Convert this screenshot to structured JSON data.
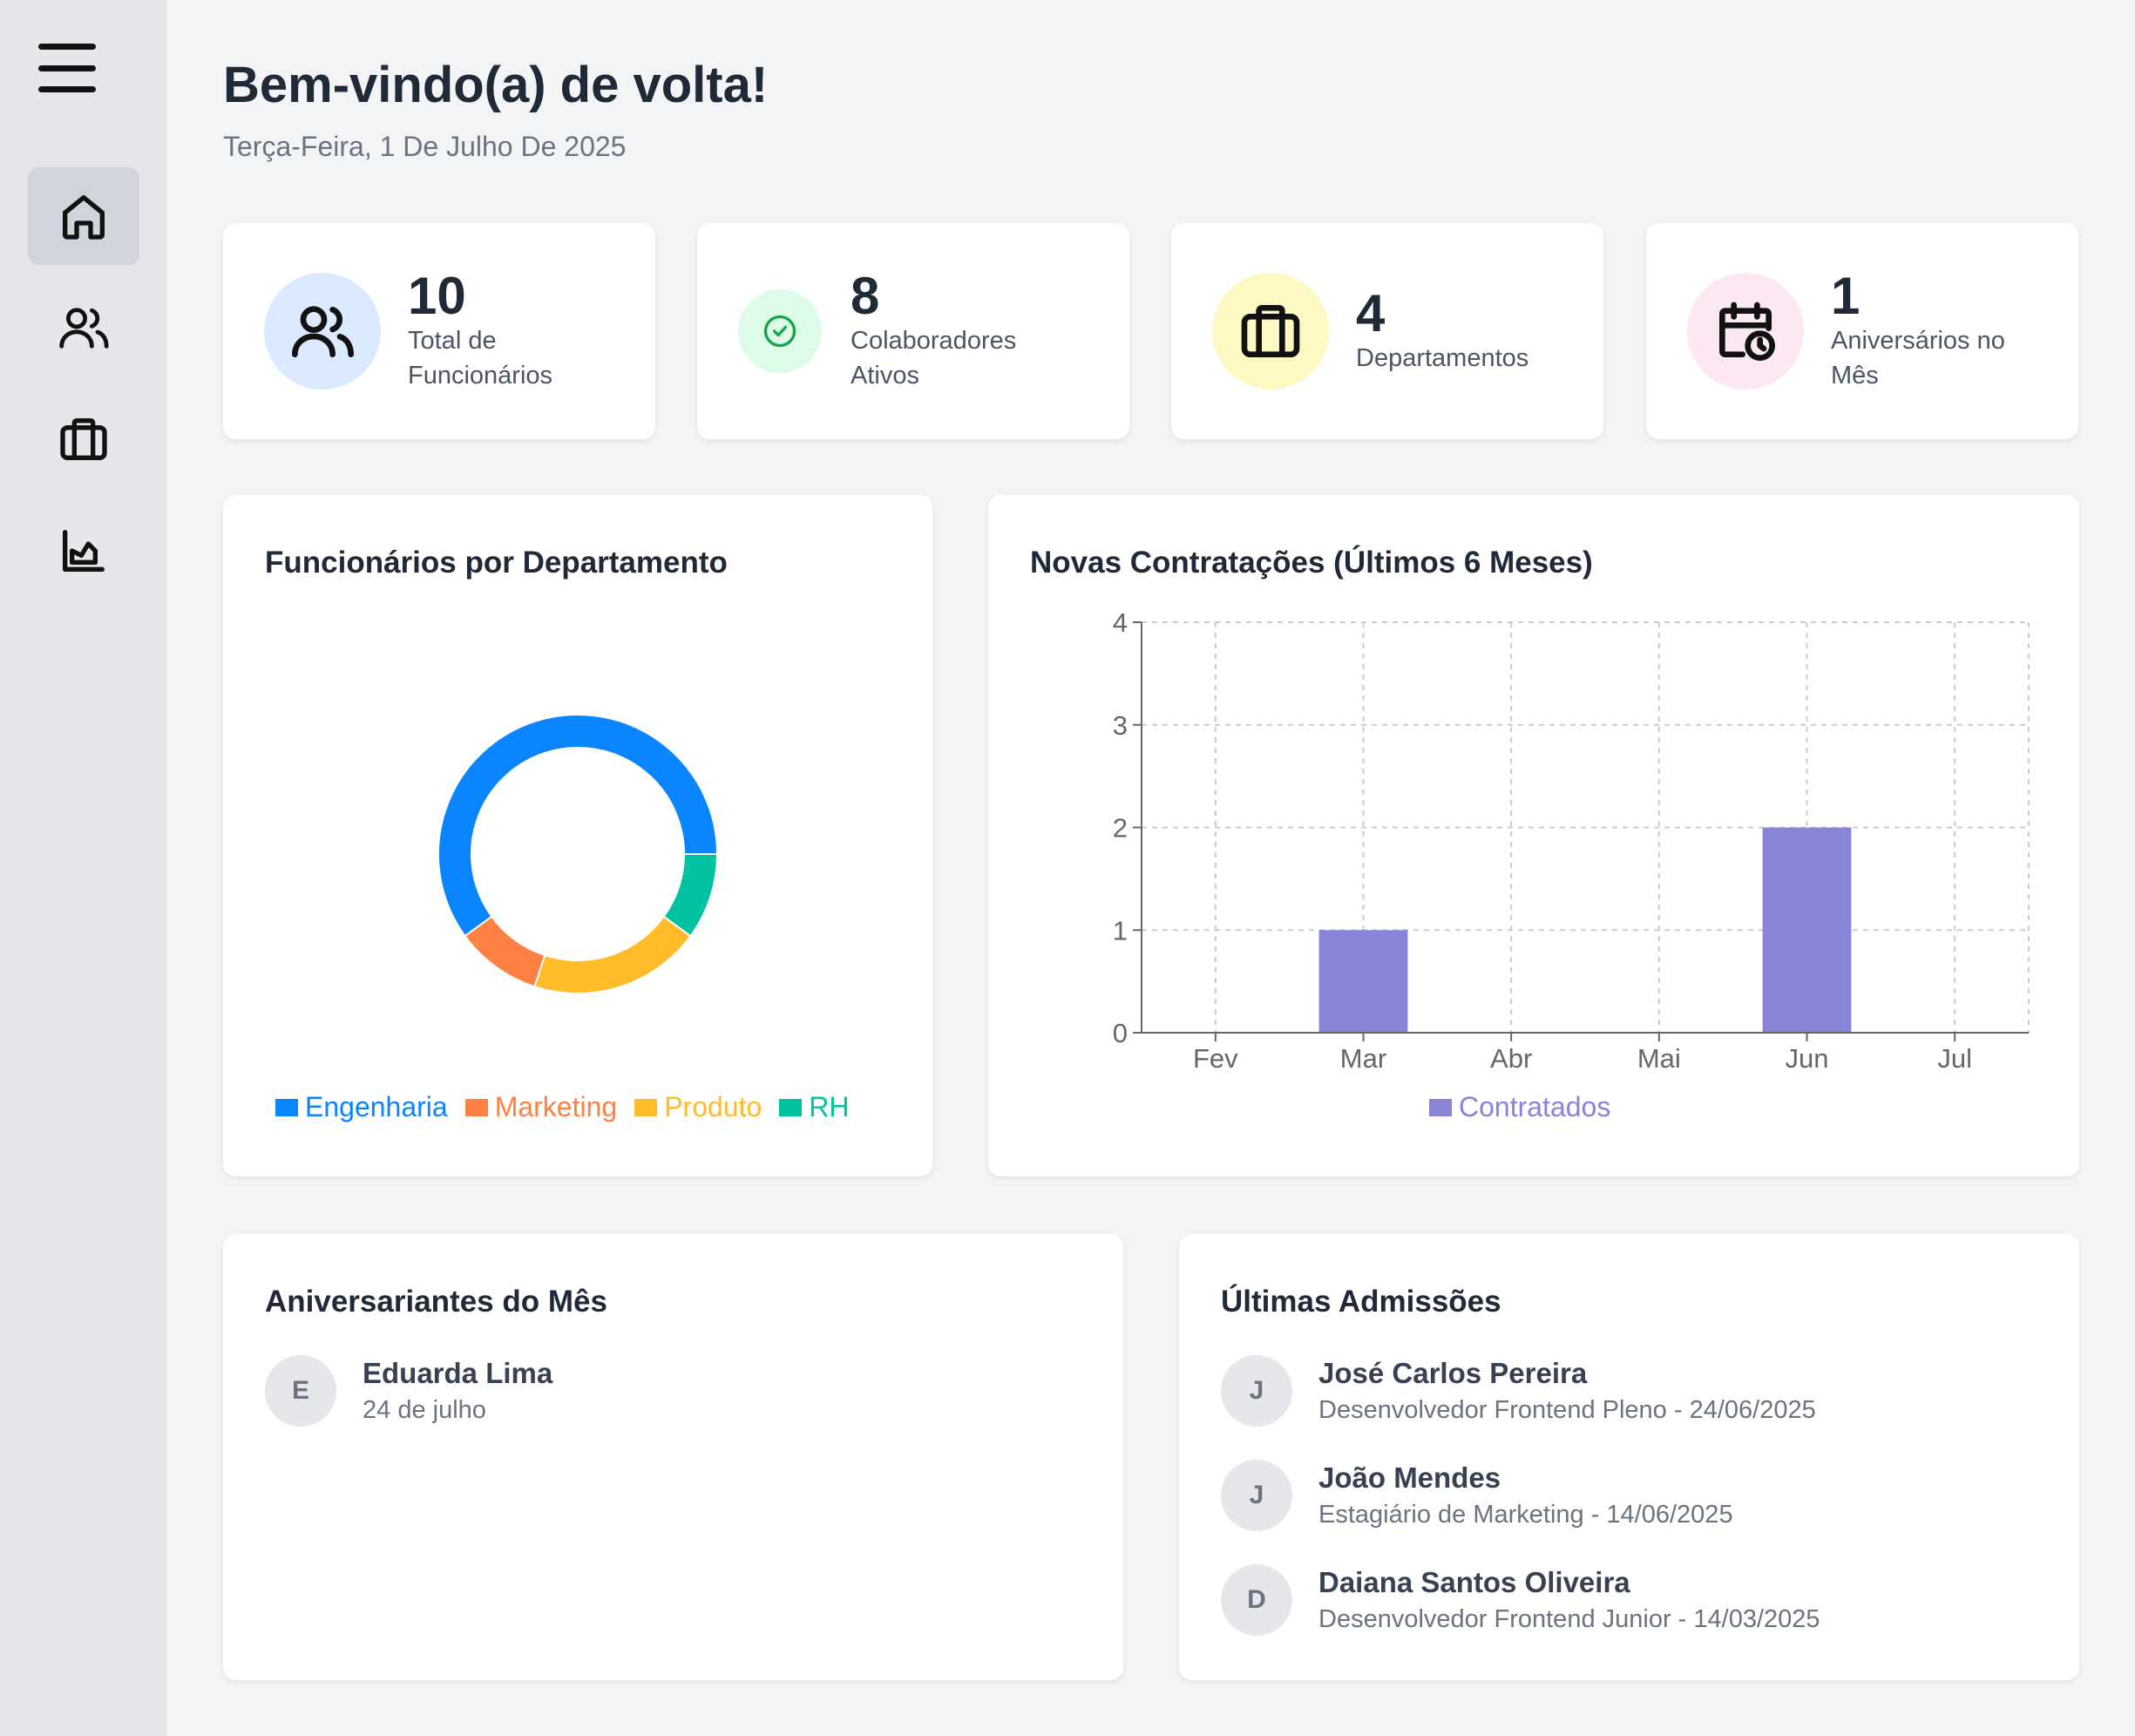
{
  "sidebar": {
    "menu_icon": "hamburger-menu-icon",
    "items": [
      {
        "icon": "home-icon",
        "active": true
      },
      {
        "icon": "users-icon",
        "active": false
      },
      {
        "icon": "briefcase-icon",
        "active": false
      },
      {
        "icon": "chart-icon",
        "active": false
      }
    ]
  },
  "header": {
    "title": "Bem-vindo(a) de volta!",
    "date": "Terça-Feira, 1 De Julho De 2025"
  },
  "stats": [
    {
      "value": "10",
      "label": "Total de Funcionários",
      "icon": "users-icon",
      "bg": "#dbeafe"
    },
    {
      "value": "8",
      "label": "Colaboradores Ativos",
      "icon": "check-circle-icon",
      "bg": "#dcfce7",
      "color": "#16a34a"
    },
    {
      "value": "4",
      "label": "Departamentos",
      "icon": "briefcase-icon",
      "bg": "#fef9c3"
    },
    {
      "value": "1",
      "label": "Aniversários no Mês",
      "icon": "calendar-clock-icon",
      "bg": "#fce7f3"
    }
  ],
  "dept_panel": {
    "title": "Funcionários por Departamento",
    "legend": [
      "Engenharia",
      "Marketing",
      "Produto",
      "RH"
    ]
  },
  "hires_panel": {
    "title": "Novas Contratações (Últimos 6 Meses)",
    "legend": "Contratados"
  },
  "chart_data": [
    {
      "type": "pie",
      "title": "Funcionários por Departamento",
      "categories": [
        "Engenharia",
        "Marketing",
        "Produto",
        "RH"
      ],
      "values": [
        6,
        1,
        2,
        1
      ],
      "colors": [
        "#0a84ff",
        "#ff8042",
        "#ffbb28",
        "#00c49f"
      ],
      "donut": true,
      "legend": "bottom"
    },
    {
      "type": "bar",
      "title": "Novas Contratações (Últimos 6 Meses)",
      "categories": [
        "Fev",
        "Mar",
        "Abr",
        "Mai",
        "Jun",
        "Jul"
      ],
      "series": [
        {
          "name": "Contratados",
          "values": [
            0,
            1,
            0,
            0,
            2,
            0
          ]
        }
      ],
      "color": "#8884d8",
      "ylim": [
        0,
        4
      ],
      "yticks": [
        "0",
        "1",
        "2",
        "3",
        "4"
      ],
      "grid": true,
      "legend": "bottom"
    }
  ],
  "birthdays": {
    "title": "Aniversariantes do Mês",
    "items": [
      {
        "initial": "E",
        "name": "Eduarda Lima",
        "detail": "24 de julho"
      }
    ]
  },
  "admissions": {
    "title": "Últimas Admissões",
    "items": [
      {
        "initial": "J",
        "name": "José Carlos Pereira",
        "detail": "Desenvolvedor Frontend Pleno - 24/06/2025"
      },
      {
        "initial": "J",
        "name": "João Mendes",
        "detail": "Estagiário de Marketing - 14/06/2025"
      },
      {
        "initial": "D",
        "name": "Daiana Santos Oliveira",
        "detail": "Desenvolvedor Frontend Junior - 14/03/2025"
      }
    ]
  }
}
